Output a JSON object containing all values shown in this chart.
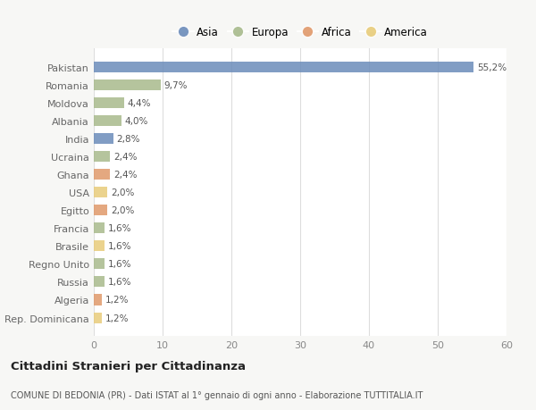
{
  "countries": [
    "Pakistan",
    "Romania",
    "Moldova",
    "Albania",
    "India",
    "Ucraina",
    "Ghana",
    "USA",
    "Egitto",
    "Francia",
    "Brasile",
    "Regno Unito",
    "Russia",
    "Algeria",
    "Rep. Dominicana"
  ],
  "values": [
    55.2,
    9.7,
    4.4,
    4.0,
    2.8,
    2.4,
    2.4,
    2.0,
    2.0,
    1.6,
    1.6,
    1.6,
    1.6,
    1.2,
    1.2
  ],
  "labels": [
    "55,2%",
    "9,7%",
    "4,4%",
    "4,0%",
    "2,8%",
    "2,4%",
    "2,4%",
    "2,0%",
    "2,0%",
    "1,6%",
    "1,6%",
    "1,6%",
    "1,6%",
    "1,2%",
    "1,2%"
  ],
  "continents": [
    "Asia",
    "Europa",
    "Europa",
    "Europa",
    "Asia",
    "Europa",
    "Africa",
    "America",
    "Africa",
    "Europa",
    "America",
    "Europa",
    "Europa",
    "Africa",
    "America"
  ],
  "colors": {
    "Asia": "#6b8cba",
    "Europa": "#a8ba8c",
    "Africa": "#e0996a",
    "America": "#e8cc7a"
  },
  "legend_order": [
    "Asia",
    "Europa",
    "Africa",
    "America"
  ],
  "title": "Cittadini Stranieri per Cittadinanza",
  "subtitle": "COMUNE DI BEDONIA (PR) - Dati ISTAT al 1° gennaio di ogni anno - Elaborazione TUTTITALIA.IT",
  "xlim": [
    0,
    60
  ],
  "xticks": [
    0,
    10,
    20,
    30,
    40,
    50,
    60
  ],
  "background_color": "#f7f7f5",
  "plot_bg_color": "#ffffff"
}
